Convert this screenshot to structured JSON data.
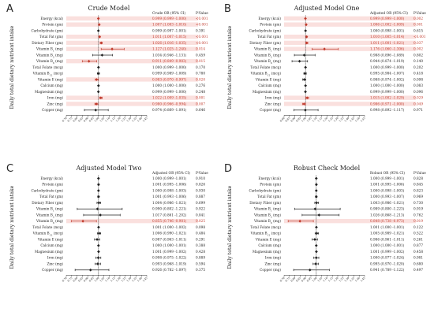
{
  "colors": {
    "significant": "#c0392b",
    "normal": "#222222",
    "band": "#f5c7c3"
  },
  "chart_data": [
    {
      "type": "forest",
      "letter": "A",
      "title": "Crude Model",
      "ylabel": "Daily total dietary nutrient intake",
      "header_or": "Crude OR (95% CI)",
      "header_p": "P-Value",
      "xlim": [
        0.7,
        1.45
      ],
      "xticks": [
        "0.70",
        "0.75",
        "0.80",
        "0.85",
        "0.90",
        "0.95",
        "1.00",
        "1.05",
        "1.10",
        "1.15",
        "1.20",
        "1.25",
        "1.30",
        "1.35",
        "1.40",
        "1.45"
      ],
      "rows": [
        {
          "label": "Energy (kcal)",
          "or": 0.999,
          "lo": 0.999,
          "hi": 1.0,
          "text": "0.999 (0.999 -1.000)",
          "p": "<0.001",
          "sig": true
        },
        {
          "label": "Protein (gm)",
          "or": 1.007,
          "lo": 1.003,
          "hi": 1.01,
          "text": "1.007 (1.003 -1.010)",
          "p": "<0.001",
          "sig": true
        },
        {
          "label": "Carbohydrate (gm)",
          "or": 0.999,
          "lo": 0.997,
          "hi": 1.001,
          "text": "0.999 (0.997 -1.001)",
          "p": "0.391",
          "sig": false
        },
        {
          "label": "Total Fat (gm)",
          "or": 1.011,
          "lo": 1.007,
          "hi": 1.015,
          "text": "1.011 (1.007 -1.015)",
          "p": "<0.001",
          "sig": true
        },
        {
          "label": "Dietary Fiber (gm)",
          "or": 1.026,
          "lo": 1.016,
          "hi": 1.035,
          "text": "1.026 (1.016 -1.035)",
          "p": "<0.001",
          "sig": true
        },
        {
          "label": "Vitamin B1 (mg)",
          "or": 1.127,
          "lo": 1.025,
          "hi": 1.24,
          "text": "1.127 (1.025 -1.240)",
          "p": "0.014",
          "sig": true
        },
        {
          "label": "Vitamin B2 (mg)",
          "or": 1.034,
          "lo": 0.946,
          "hi": 1.131,
          "text": "1.034 (0.946 -1.131)",
          "p": "0.459",
          "sig": false
        },
        {
          "label": "Vitamin B6 (mg)",
          "or": 0.911,
          "lo": 0.849,
          "hi": 0.983,
          "text": "0.911 (0.849 -0.983)",
          "p": "0.015",
          "sig": true
        },
        {
          "label": "Total Folate (mcg)",
          "or": 1.0,
          "or_display": "1.000",
          "lo": 0.999,
          "hi": 1.0,
          "text": "1.000 (0.999 -1.000)",
          "p": "0.170",
          "sig": false
        },
        {
          "label": "Vitamin B12 (mcg)",
          "or": 0.999,
          "lo": 0.989,
          "hi": 1.009,
          "text": "0.999 (0.989 -1.009)",
          "p": "0.780",
          "sig": false
        },
        {
          "label": "Vitamin E (mg)",
          "or": 0.983,
          "lo": 0.97,
          "hi": 0.997,
          "text": "0.983 (0.970 -0.997)",
          "p": "0.020",
          "sig": true
        },
        {
          "label": "Calcium (mg)",
          "or": 1.0,
          "lo": 1.0,
          "hi": 1.0,
          "text": "1.000 (1.000 -1.000)",
          "p": "0.276",
          "sig": false
        },
        {
          "label": "Magnesium (mg)",
          "or": 0.999,
          "lo": 0.999,
          "hi": 1.0,
          "text": "0.999 (0.999 -1.000)",
          "p": "0.248",
          "sig": false
        },
        {
          "label": "Iron (mg)",
          "or": 1.022,
          "lo": 1.009,
          "hi": 1.035,
          "text": "1.022 (1.009 -1.035)",
          "p": "0.001",
          "sig": true
        },
        {
          "label": "Zinc (mg)",
          "or": 0.98,
          "lo": 0.966,
          "hi": 0.994,
          "text": "0.980 (0.966 -0.994)",
          "p": "0.007",
          "sig": true
        },
        {
          "label": "Copper (mg)",
          "or": 0.974,
          "lo": 0.869,
          "hi": 1.091,
          "text": "0.974 (0.869 -1.091)",
          "p": "0.646",
          "sig": false
        }
      ]
    },
    {
      "type": "forest",
      "letter": "B",
      "title": "Adjusted Model One",
      "ylabel": "Daily total dietary nutrient intake",
      "header_or": "Adjusted OR (95% CI)",
      "header_p": "P-Value",
      "xlim": [
        0.8,
        1.55
      ],
      "xticks": [
        "0.80",
        "0.85",
        "0.90",
        "0.95",
        "1.00",
        "1.05",
        "1.10",
        "1.15",
        "1.20",
        "1.25",
        "1.30",
        "1.35",
        "1.40",
        "1.45",
        "1.50",
        "1.55"
      ],
      "rows": [
        {
          "label": "Energy (kcal)",
          "or": 0.999,
          "lo": 0.999,
          "hi": 1.0,
          "text": "0.999 (0.999 -1.000)",
          "p": "0.002",
          "sig": true
        },
        {
          "label": "Protein (gm)",
          "or": 1.006,
          "lo": 1.002,
          "hi": 1.009,
          "text": "1.006 (1.002 -1.009)",
          "p": "0.001",
          "sig": true
        },
        {
          "label": "Carbohydrate (gm)",
          "or": 1.0,
          "lo": 0.998,
          "hi": 1.001,
          "text": "1.000 (0.998 -1.001)",
          "p": "0.615",
          "sig": false
        },
        {
          "label": "Total Fat (gm)",
          "or": 1.01,
          "lo": 1.005,
          "hi": 1.014,
          "text": "1.010 (1.005 -1.014)",
          "p": "<0.001",
          "sig": true
        },
        {
          "label": "Dietary Fiber (gm)",
          "or": 1.011,
          "lo": 1.001,
          "hi": 1.021,
          "text": "1.011 (1.001 -1.021)",
          "p": "0.037",
          "sig": true
        },
        {
          "label": "Vitamin B1 (mg)",
          "or": 1.176,
          "lo": 1.06,
          "hi": 1.306,
          "text": "1.176 (1.060 -1.306)",
          "p": "0.002",
          "sig": true
        },
        {
          "label": "Vitamin B2 (mg)",
          "or": 0.988,
          "lo": 0.896,
          "hi": 1.089,
          "text": "0.988 (0.896 -1.089)",
          "p": "0.802",
          "sig": false
        },
        {
          "label": "Vitamin B6 (mg)",
          "or": 0.944,
          "lo": 0.874,
          "hi": 1.019,
          "text": "0.944 (0.874 -1.019)",
          "p": "0.140",
          "sig": false
        },
        {
          "label": "Total Folate (mcg)",
          "or": 1.0,
          "lo": 0.999,
          "hi": 1.0,
          "text": "1.000 (0.999 -1.000)",
          "p": "0.202",
          "sig": false
        },
        {
          "label": "Vitamin B12 (mcg)",
          "or": 0.995,
          "lo": 0.984,
          "hi": 1.007,
          "text": "0.995 (0.984 -1.007)",
          "p": "0.418",
          "sig": false
        },
        {
          "label": "Vitamin E (mg)",
          "or": 0.988,
          "lo": 0.974,
          "hi": 1.002,
          "text": "0.988 (0.974 -1.002)",
          "p": "0.098",
          "sig": false
        },
        {
          "label": "Calcium (mg)",
          "or": 1.0,
          "lo": 1.0,
          "hi": 1.0,
          "text": "1.000 (1.000 -1.000)",
          "p": "0.083",
          "sig": false
        },
        {
          "label": "Magnesium (mg)",
          "or": 0.999,
          "lo": 0.999,
          "hi": 1.0,
          "text": "0.999 (0.999 -1.000)",
          "p": "0.096",
          "sig": false
        },
        {
          "label": "Iron (mg)",
          "or": 1.015,
          "lo": 1.002,
          "hi": 1.029,
          "text": "1.015 (1.002 -1.029)",
          "p": "0.029",
          "sig": true
        },
        {
          "label": "Zinc (mg)",
          "or": 0.986,
          "lo": 0.971,
          "hi": 1.0,
          "text": "0.986 (0.971 -1.000)",
          "p": "0.049",
          "sig": true
        },
        {
          "label": "Copper (mg)",
          "or": 0.998,
          "lo": 0.892,
          "hi": 1.117,
          "text": "0.998 (0.892 -1.117)",
          "p": "0.971",
          "sig": false
        }
      ]
    },
    {
      "type": "forest",
      "letter": "C",
      "title": "Adjusted Model Two",
      "ylabel": "Daily total dietary nutrient intake",
      "header_or": "Adjusted OR (95% CI)",
      "header_p": "P-Value",
      "xlim": [
        0.7,
        1.45
      ],
      "xticks": [
        "0.70",
        "0.75",
        "0.80",
        "0.85",
        "0.90",
        "0.95",
        "1.00",
        "1.05",
        "1.10",
        "1.15",
        "1.20",
        "1.25",
        "1.30",
        "1.35",
        "1.40",
        "1.45"
      ],
      "rows": [
        {
          "label": "Energy (kcal)",
          "or": 1.0,
          "lo": 0.999,
          "hi": 1.001,
          "text": "1.000 (0.999 -1.001)",
          "p": "0.910",
          "sig": false
        },
        {
          "label": "Protein (gm)",
          "or": 1.001,
          "lo": 0.995,
          "hi": 1.006,
          "text": "1.001 (0.995 -1.006)",
          "p": "0.826",
          "sig": false
        },
        {
          "label": "Carbohydrate (gm)",
          "or": 1.0,
          "lo": 0.998,
          "hi": 1.003,
          "text": "1.000 (0.998 -1.003)",
          "p": "0.930",
          "sig": false
        },
        {
          "label": "Total Fat (gm)",
          "or": 1.001,
          "lo": 0.993,
          "hi": 1.006,
          "text": "1.001 (0.993 -1.006)",
          "p": "0.887",
          "sig": false
        },
        {
          "label": "Dietary Fiber (gm)",
          "or": 1.004,
          "lo": 0.986,
          "hi": 1.021,
          "text": "1.004 (0.986 -1.021)",
          "p": "0.699",
          "sig": false
        },
        {
          "label": "Vitamin B1 (mg)",
          "or": 0.99,
          "lo": 0.802,
          "hi": 1.221,
          "text": "0.990 (0.802 -1.221)",
          "p": "0.922",
          "sig": false
        },
        {
          "label": "Vitamin B2 (mg)",
          "or": 1.017,
          "lo": 0.861,
          "hi": 1.202,
          "text": "1.017 (0.861 -1.202)",
          "p": "0.841",
          "sig": false
        },
        {
          "label": "Vitamin B6 (mg)",
          "or": 0.855,
          "lo": 0.746,
          "hi": 0.981,
          "text": "0.855 (0.746 -0.981)",
          "p": "0.025",
          "sig": true
        },
        {
          "label": "Total Folate (mcg)",
          "or": 1.001,
          "lo": 1.0,
          "hi": 1.002,
          "text": "1.001 (1.000 -1.002)",
          "p": "0.098",
          "sig": false
        },
        {
          "label": "Vitamin B12 (mcg)",
          "or": 1.006,
          "lo": 0.99,
          "hi": 1.021,
          "text": "1.006 (0.990 -1.021)",
          "p": "0.484",
          "sig": false
        },
        {
          "label": "Vitamin E (mg)",
          "or": 0.987,
          "lo": 0.963,
          "hi": 1.011,
          "text": "0.987 (0.963 -1.011)",
          "p": "0.291",
          "sig": false
        },
        {
          "label": "Calcium (mg)",
          "or": 1.0,
          "lo": 1.0,
          "hi": 1.001,
          "text": "1.000 (1.000 -1.001)",
          "p": "0.388",
          "sig": false
        },
        {
          "label": "Magnesium (mg)",
          "or": 1.001,
          "lo": 0.999,
          "hi": 1.002,
          "text": "1.001 (0.999 -1.002)",
          "p": "0.428",
          "sig": false
        },
        {
          "label": "Iron (mg)",
          "or": 0.998,
          "lo": 0.975,
          "hi": 1.022,
          "text": "0.998 (0.975 -1.022)",
          "p": "0.889",
          "sig": false
        },
        {
          "label": "Zinc (mg)",
          "or": 0.993,
          "lo": 0.968,
          "hi": 1.019,
          "text": "0.993 (0.968 -1.019)",
          "p": "0.594",
          "sig": false
        },
        {
          "label": "Copper (mg)",
          "or": 0.926,
          "lo": 0.782,
          "hi": 1.097,
          "text": "0.926 (0.782 -1.097)",
          "p": "0.375",
          "sig": false
        }
      ]
    },
    {
      "type": "forest",
      "letter": "D",
      "title": "Robust Check Model",
      "ylabel": "Daily total dietary nutrient intake",
      "header_or": "Robust OR (95% CI)",
      "header_p": "P-Value",
      "xlim": [
        0.7,
        1.45
      ],
      "xticks": [
        "0.70",
        "0.75",
        "0.80",
        "0.85",
        "0.90",
        "0.95",
        "1.00",
        "1.05",
        "1.10",
        "1.15",
        "1.20",
        "1.25",
        "1.30",
        "1.35",
        "1.40",
        "1.45"
      ],
      "rows": [
        {
          "label": "Energy (kcal)",
          "or": 1.0,
          "lo": 0.999,
          "hi": 1.001,
          "text": "1.000 (0.999 -1.001)",
          "p": "0.828",
          "sig": false
        },
        {
          "label": "Protein (gm)",
          "or": 1.001,
          "lo": 0.995,
          "hi": 1.006,
          "text": "1.001 (0.995 -1.006)",
          "p": "0.845",
          "sig": false
        },
        {
          "label": "Carbohydrate (gm)",
          "or": 1.0,
          "lo": 0.998,
          "hi": 1.003,
          "text": "1.000 (0.998 -1.003)",
          "p": "0.823",
          "sig": false
        },
        {
          "label": "Total Fat (gm)",
          "or": 1.0,
          "lo": 0.993,
          "hi": 1.007,
          "text": "1.000 (0.993 -1.007)",
          "p": "0.969",
          "sig": false
        },
        {
          "label": "Dietary Fiber (gm)",
          "or": 1.003,
          "lo": 0.986,
          "hi": 1.021,
          "text": "1.003 (0.986 -1.021)",
          "p": "0.730",
          "sig": false
        },
        {
          "label": "Vitamin B1 (mg)",
          "or": 0.989,
          "lo": 0.8,
          "hi": 1.223,
          "text": "0.989 (0.800 -1.223)",
          "p": "0.919",
          "sig": false
        },
        {
          "label": "Vitamin B2 (mg)",
          "or": 1.026,
          "lo": 0.868,
          "hi": 1.213,
          "text": "1.026 (0.868 -1.213)",
          "p": "0.762",
          "sig": false
        },
        {
          "label": "Vitamin B6 (mg)",
          "or": 0.848,
          "lo": 0.738,
          "hi": 0.973,
          "text": "0.848 (0.738 -0.973)",
          "p": "0.019",
          "sig": true
        },
        {
          "label": "Total Folate (mcg)",
          "or": 1.001,
          "lo": 1.0,
          "hi": 1.001,
          "text": "1.001 (1.000 -1.001)",
          "p": "0.122",
          "sig": false
        },
        {
          "label": "Vitamin B12 (mcg)",
          "or": 1.005,
          "lo": 0.989,
          "hi": 1.021,
          "text": "1.005 (0.989 -1.021)",
          "p": "0.522",
          "sig": false
        },
        {
          "label": "Vitamin E (mg)",
          "or": 0.986,
          "lo": 0.961,
          "hi": 1.011,
          "text": "0.986 (0.961 -1.011)",
          "p": "0.261",
          "sig": false
        },
        {
          "label": "Calcium (mg)",
          "or": 1.0,
          "lo": 1.0,
          "hi": 1.001,
          "text": "1.000 (1.000 -1.001)",
          "p": "0.877",
          "sig": false
        },
        {
          "label": "Magnesium (mg)",
          "or": 1.001,
          "lo": 0.999,
          "hi": 1.002,
          "text": "1.001 (0.999 -1.002)",
          "p": "0.458",
          "sig": false
        },
        {
          "label": "Iron (mg)",
          "or": 1.0,
          "lo": 0.977,
          "hi": 1.024,
          "text": "1.000 (0.977 -1.024)",
          "p": "0.981",
          "sig": false
        },
        {
          "label": "Zinc (mg)",
          "or": 0.995,
          "lo": 0.97,
          "hi": 1.02,
          "text": "0.995 (0.970 -1.020)",
          "p": "0.680",
          "sig": false
        },
        {
          "label": "Copper (mg)",
          "or": 0.941,
          "lo": 0.789,
          "hi": 1.122,
          "text": "0.941 (0.789 -1.122)",
          "p": "0.497",
          "sig": false
        }
      ]
    }
  ]
}
